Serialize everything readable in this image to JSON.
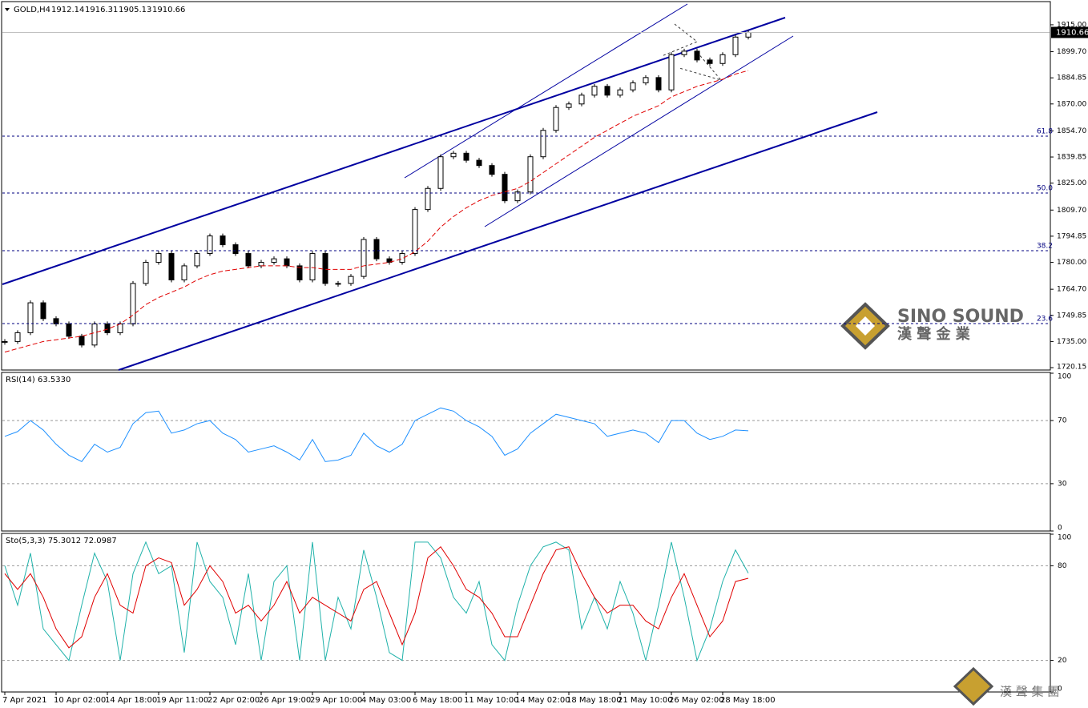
{
  "chart_data": [
    {
      "type": "candlestick",
      "header": {
        "symbol": "GOLD,H4",
        "values": [
          1912.14,
          1916.31,
          1905.13,
          1910.66
        ]
      },
      "x": [
        "7 Apr 2021",
        null,
        null,
        null,
        "10 Apr 02:00",
        null,
        null,
        null,
        "14 Apr 18:00",
        null,
        null,
        null,
        "19 Apr 11:00",
        null,
        null,
        null,
        "22 Apr 02:00",
        null,
        null,
        null,
        "26 Apr 19:00",
        null,
        null,
        null,
        "29 Apr 10:00",
        null,
        null,
        null,
        "4 May 03:00",
        null,
        null,
        null,
        "6 May 18:00",
        null,
        null,
        null,
        "11 May 10:00",
        null,
        null,
        null,
        "14 May 02:00",
        null,
        null,
        null,
        "18 May 18:00",
        null,
        null,
        null,
        "21 May 10:00",
        null,
        null,
        null,
        "26 May 02:00",
        null,
        null,
        null,
        "28 May 18:00",
        null,
        null
      ],
      "ylim": [
        1718.8,
        1926.8
      ],
      "yticks": [
        {
          "value": 1915,
          "label": "1915.00"
        },
        {
          "value": 1899.7,
          "label": "1899.70"
        },
        {
          "value": 1884.85,
          "label": "1884.85"
        },
        {
          "value": 1870,
          "label": "1870.00"
        },
        {
          "value": 1854.7,
          "label": "1854.70"
        },
        {
          "value": 1839.85,
          "label": "1839.85"
        },
        {
          "value": 1825,
          "label": "1825.00"
        },
        {
          "value": 1809.7,
          "label": "1809.70"
        },
        {
          "value": 1794.85,
          "label": "1794.85"
        },
        {
          "value": 1780,
          "label": "1780.00"
        },
        {
          "value": 1764.7,
          "label": "1764.70"
        },
        {
          "value": 1749.85,
          "label": "1749.85"
        },
        {
          "value": 1735,
          "label": "1735.00"
        },
        {
          "value": 1720.15,
          "label": "1720.15"
        }
      ],
      "series": [
        {
          "color": "#000000",
          "values": [
            1735,
            1740,
            1757,
            1748,
            1745,
            1738,
            1733,
            1745,
            1740,
            1745,
            1768,
            1780,
            1785,
            1770,
            1778,
            1785,
            1795,
            1790,
            1785,
            1778,
            1780,
            1782,
            1778,
            1770,
            1785,
            1768,
            1768,
            1772,
            1793,
            1782,
            1780,
            1785,
            1810,
            1822,
            1840,
            1842,
            1838,
            1835,
            1830,
            1815,
            1820,
            1840,
            1855,
            1868,
            1870,
            1875,
            1880,
            1875,
            1878,
            1882,
            1885,
            1878,
            1898,
            1900,
            1895,
            1893,
            1898,
            1908,
            1910.66
          ]
        },
        {
          "color": "#e00000",
          "dashed": true,
          "values": [
            1729,
            1731,
            1733,
            1735,
            1736,
            1737,
            1738,
            1740,
            1742,
            1745,
            1750,
            1756,
            1760,
            1763,
            1766,
            1770,
            1773,
            1775,
            1776,
            1777,
            1778,
            1778,
            1778,
            1777,
            1777,
            1776,
            1776,
            1776,
            1778,
            1779,
            1780,
            1782,
            1786,
            1792,
            1800,
            1806,
            1811,
            1815,
            1818,
            1820,
            1822,
            1826,
            1831,
            1836,
            1841,
            1846,
            1851,
            1855,
            1859,
            1863,
            1866,
            1869,
            1874,
            1877,
            1880,
            1882,
            1884,
            1887,
            1889
          ]
        }
      ],
      "levels": [
        {
          "label": "61.8",
          "value": 1851.7
        },
        {
          "label": "50.0",
          "value": 1819.4
        },
        {
          "label": "38.2",
          "value": 1786.6
        },
        {
          "label": "23.6",
          "value": 1745.2
        }
      ],
      "last_price": 1910.66
    },
    {
      "type": "line",
      "label": "RSI(14) 63.5330",
      "ylim": [
        0,
        100
      ],
      "yticks": [
        100,
        70,
        30,
        0
      ],
      "series": [
        {
          "color": "#1e90ff",
          "values": [
            60,
            63,
            70,
            64,
            55,
            48,
            44,
            55,
            50,
            53,
            68,
            75,
            76,
            62,
            64,
            68,
            70,
            62,
            58,
            50,
            52,
            54,
            50,
            45,
            58,
            44,
            45,
            48,
            62,
            54,
            50,
            55,
            70,
            74,
            78,
            76,
            70,
            66,
            60,
            48,
            52,
            62,
            68,
            74,
            72,
            70,
            68,
            60,
            62,
            64,
            62,
            56,
            70,
            70,
            62,
            58,
            60,
            64,
            63.53
          ]
        }
      ]
    },
    {
      "type": "line",
      "label": "Sto(5,3,3) 75.3012 72.0987",
      "ylim": [
        0,
        100
      ],
      "yticks": [
        100,
        80,
        20,
        0
      ],
      "series": [
        {
          "color": "#20b2aa",
          "values": [
            80,
            55,
            88,
            40,
            30,
            20,
            55,
            88,
            70,
            20,
            75,
            95,
            75,
            80,
            25,
            95,
            70,
            60,
            30,
            75,
            20,
            70,
            80,
            20,
            95,
            20,
            60,
            40,
            90,
            60,
            25,
            20,
            95,
            95,
            85,
            60,
            50,
            70,
            30,
            20,
            55,
            80,
            92,
            95,
            90,
            40,
            60,
            40,
            70,
            50,
            20,
            55,
            95,
            60,
            20,
            40,
            70,
            90,
            75.3
          ]
        },
        {
          "color": "#e00000",
          "values": [
            75,
            65,
            75,
            60,
            40,
            28,
            35,
            60,
            75,
            55,
            50,
            80,
            85,
            82,
            55,
            65,
            80,
            70,
            50,
            55,
            45,
            55,
            70,
            50,
            60,
            55,
            50,
            45,
            65,
            70,
            50,
            30,
            50,
            85,
            92,
            80,
            65,
            60,
            50,
            35,
            35,
            55,
            75,
            90,
            92,
            75,
            60,
            50,
            55,
            55,
            45,
            40,
            60,
            75,
            55,
            35,
            45,
            70,
            72.1
          ]
        }
      ]
    }
  ],
  "watermark": {
    "brand": "SINO SOUND",
    "company": "漢 聲 金 業",
    "group": "漢 聲 集 團"
  }
}
